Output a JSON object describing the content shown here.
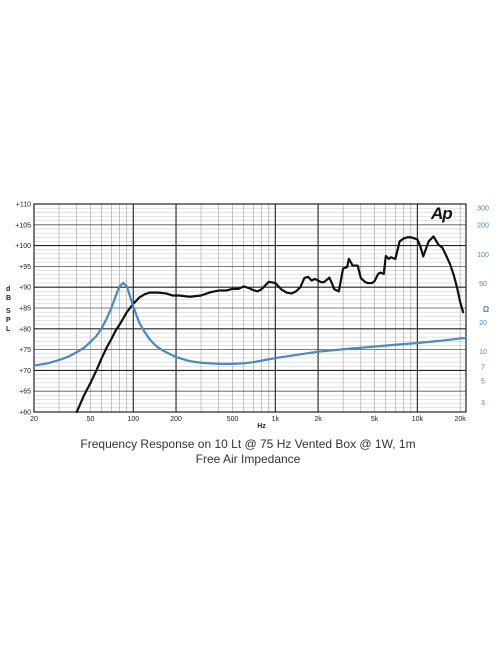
{
  "logo": "Ap",
  "caption": {
    "line1": "Frequency Response on 10 Lt @ 75 Hz Vented Box @ 1W, 1m",
    "line2": "Free Air Impedance"
  },
  "chart_data": {
    "type": "line",
    "xscale": "log",
    "xlim": [
      20,
      22000
    ],
    "xlabel": "Hz",
    "xticks": [
      20,
      50,
      100,
      200,
      500,
      1000,
      2000,
      5000,
      10000,
      20000
    ],
    "xtick_labels": [
      "20",
      "50",
      "100",
      "200",
      "500",
      "1k",
      "2k",
      "5k",
      "10k",
      "20k"
    ],
    "ylabel": "dB SPL",
    "ylim": [
      60,
      110
    ],
    "yticks": [
      60,
      65,
      70,
      75,
      80,
      85,
      90,
      95,
      100,
      105,
      110
    ],
    "ytick_labels": [
      "+60",
      "+65",
      "+70",
      "+75",
      "+80",
      "+85",
      "+90",
      "+95",
      "+100",
      "+105",
      "+110"
    ],
    "y2label": "Ω",
    "y2scale": "log",
    "y2lim": [
      2.4,
      330
    ],
    "y2ticks": [
      3,
      5,
      7,
      10,
      20,
      50,
      100,
      200,
      300
    ],
    "y2tick_labels": [
      "3",
      "5",
      "7",
      "10",
      "20",
      "50",
      "100",
      "200",
      "300"
    ],
    "grid": true,
    "series": [
      {
        "name": "",
        "axis": "left",
        "color": "#111111",
        "x": [
          40,
          45,
          50,
          55,
          60,
          65,
          70,
          75,
          80,
          85,
          90,
          100,
          110,
          120,
          130,
          150,
          170,
          190,
          210,
          250,
          300,
          350,
          400,
          450,
          500,
          550,
          600,
          650,
          700,
          750,
          800,
          900,
          1000,
          1100,
          1200,
          1300,
          1400,
          1500,
          1600,
          1700,
          1800,
          1900,
          2000,
          2100,
          2200,
          2400,
          2500,
          2600,
          2800,
          3000,
          3200,
          3300,
          3500,
          3800,
          4000,
          4300,
          4500,
          4800,
          5000,
          5300,
          5500,
          5800,
          6000,
          6300,
          6500,
          7000,
          7500,
          8000,
          8500,
          9000,
          10000,
          10500,
          11000,
          12000,
          13000,
          14000,
          15000,
          16000,
          17000,
          18000,
          19000,
          20000,
          21000
        ],
        "y": [
          60,
          64,
          67,
          70,
          73,
          75.5,
          77.5,
          79.5,
          81,
          82.5,
          84,
          86,
          87.5,
          88.3,
          88.7,
          88.7,
          88.5,
          88,
          88,
          87.7,
          88,
          88.8,
          89.2,
          89.2,
          89.6,
          89.6,
          90.2,
          89.8,
          89.3,
          89,
          89.5,
          91.3,
          91,
          89.5,
          88.7,
          88.5,
          89,
          90,
          92.2,
          92.5,
          91.6,
          92,
          91.6,
          91.2,
          91.2,
          92.3,
          91,
          89.5,
          89,
          94.5,
          94.8,
          96.8,
          95.2,
          95.2,
          92.2,
          91.2,
          91,
          91,
          91.5,
          93.2,
          93.5,
          93.2,
          97.5,
          96.8,
          97.2,
          96.8,
          101,
          101.7,
          102,
          102,
          101.5,
          99.8,
          97.4,
          101,
          102.2,
          100.3,
          99.5,
          97.5,
          95.5,
          93,
          90,
          86.5,
          84
        ]
      },
      {
        "name": "",
        "axis": "right",
        "color": "#4a8ac4",
        "x": [
          20,
          25,
          30,
          35,
          40,
          45,
          50,
          55,
          60,
          65,
          70,
          75,
          80,
          85,
          90,
          95,
          100,
          110,
          120,
          130,
          140,
          150,
          170,
          200,
          250,
          300,
          400,
          500,
          600,
          700,
          800,
          1000,
          1500,
          2000,
          3000,
          5000,
          7000,
          10000,
          15000,
          20000,
          22000
        ],
        "y": [
          7.2,
          7.6,
          8.2,
          8.9,
          9.9,
          11,
          12.6,
          14.5,
          17.5,
          22,
          28,
          37,
          47,
          51,
          47,
          37,
          29,
          20,
          16,
          13.5,
          12,
          11,
          9.9,
          8.8,
          8,
          7.7,
          7.5,
          7.5,
          7.6,
          7.8,
          8.1,
          8.6,
          9.4,
          10,
          10.6,
          11.3,
          11.8,
          12.3,
          13,
          13.7,
          13.8
        ]
      }
    ]
  }
}
